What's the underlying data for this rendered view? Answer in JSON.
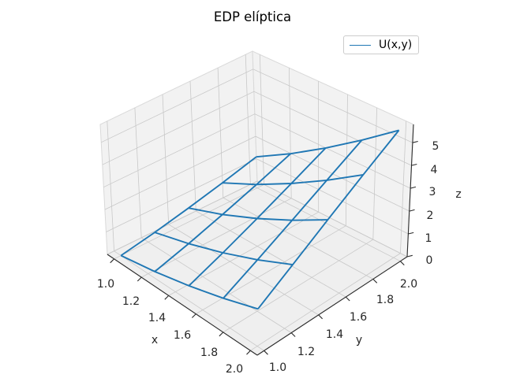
{
  "figure": {
    "background": "#ffffff"
  },
  "chart_data": {
    "type": "wireframe",
    "projection": "3d",
    "title": "EDP elíptica",
    "xlabel": "x",
    "ylabel": "y",
    "zlabel": "z",
    "legend": {
      "entries": [
        "U(x,y)"
      ],
      "position": "upper right"
    },
    "x": [
      1.0,
      1.25,
      1.5,
      1.75,
      2.0
    ],
    "y": [
      1.0,
      1.25,
      1.5,
      1.75,
      2.0
    ],
    "z": [
      [
        0.0,
        0.2789,
        0.6082,
        0.9793,
        1.3863
      ],
      [
        0.2789,
        0.6973,
        1.1786,
        1.7122,
        2.2907
      ],
      [
        0.6082,
        1.1786,
        1.8245,
        2.5334,
        3.2958
      ],
      [
        0.9793,
        1.7122,
        2.5334,
        3.4275,
        4.3847
      ],
      [
        1.3863,
        2.2907,
        3.2958,
        4.3847,
        5.5452
      ]
    ],
    "xlim": [
      0.95,
      2.05
    ],
    "ylim": [
      0.95,
      2.05
    ],
    "zlim": [
      0,
      5.8
    ],
    "xticks": {
      "values": [
        1.0,
        1.2,
        1.4,
        1.6,
        1.8,
        2.0
      ],
      "labels": [
        "1.0",
        "1.2",
        "1.4",
        "1.6",
        "1.8",
        "2.0"
      ]
    },
    "yticks": {
      "values": [
        1.0,
        1.2,
        1.4,
        1.6,
        1.8,
        2.0
      ],
      "labels": [
        "1.0",
        "1.2",
        "1.4",
        "1.6",
        "1.8",
        "2.0"
      ]
    },
    "zticks": {
      "values": [
        0,
        1,
        2,
        3,
        4,
        5
      ],
      "labels": [
        "0",
        "1",
        "2",
        "3",
        "4",
        "5"
      ]
    },
    "grid": true,
    "colors": {
      "wireframe": "#1f77b4",
      "grid": "#c8c8c8",
      "pane_wall": "#f2f2f2",
      "pane_floor": "#efefef",
      "pane_edge": "#d9d9d9",
      "axis_line": "#2a2a2a",
      "text": "#262626",
      "title": "#000000"
    }
  }
}
